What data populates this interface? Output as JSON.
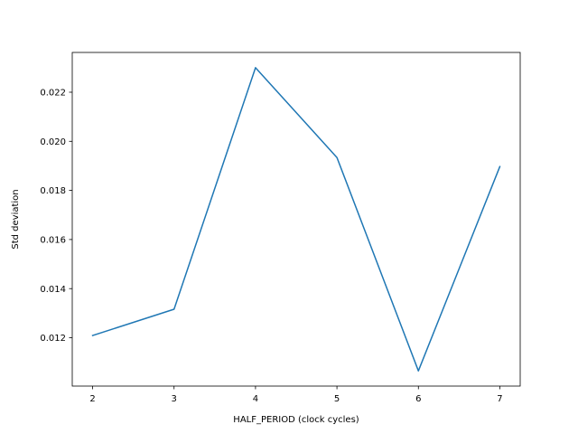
{
  "chart_data": {
    "type": "line",
    "title": "",
    "xlabel": "HALF_PERIOD (clock cycles)",
    "ylabel": "Std deviation",
    "xlim": [
      1.75,
      7.25
    ],
    "ylim": [
      0.01003,
      0.02362
    ],
    "xticks": [
      2,
      3,
      4,
      5,
      6,
      7
    ],
    "xtick_labels": [
      "2",
      "3",
      "4",
      "5",
      "6",
      "7"
    ],
    "yticks": [
      0.012,
      0.014,
      0.016,
      0.018,
      0.02,
      0.022
    ],
    "ytick_labels": [
      "0.012",
      "0.014",
      "0.016",
      "0.018",
      "0.020",
      "0.022"
    ],
    "grid": false,
    "series": [
      {
        "color": "#1f77b4",
        "x": [
          2,
          3,
          4,
          5,
          6,
          7
        ],
        "y": [
          0.01209,
          0.01316,
          0.023,
          0.01934,
          0.01065,
          0.01897
        ]
      }
    ]
  }
}
